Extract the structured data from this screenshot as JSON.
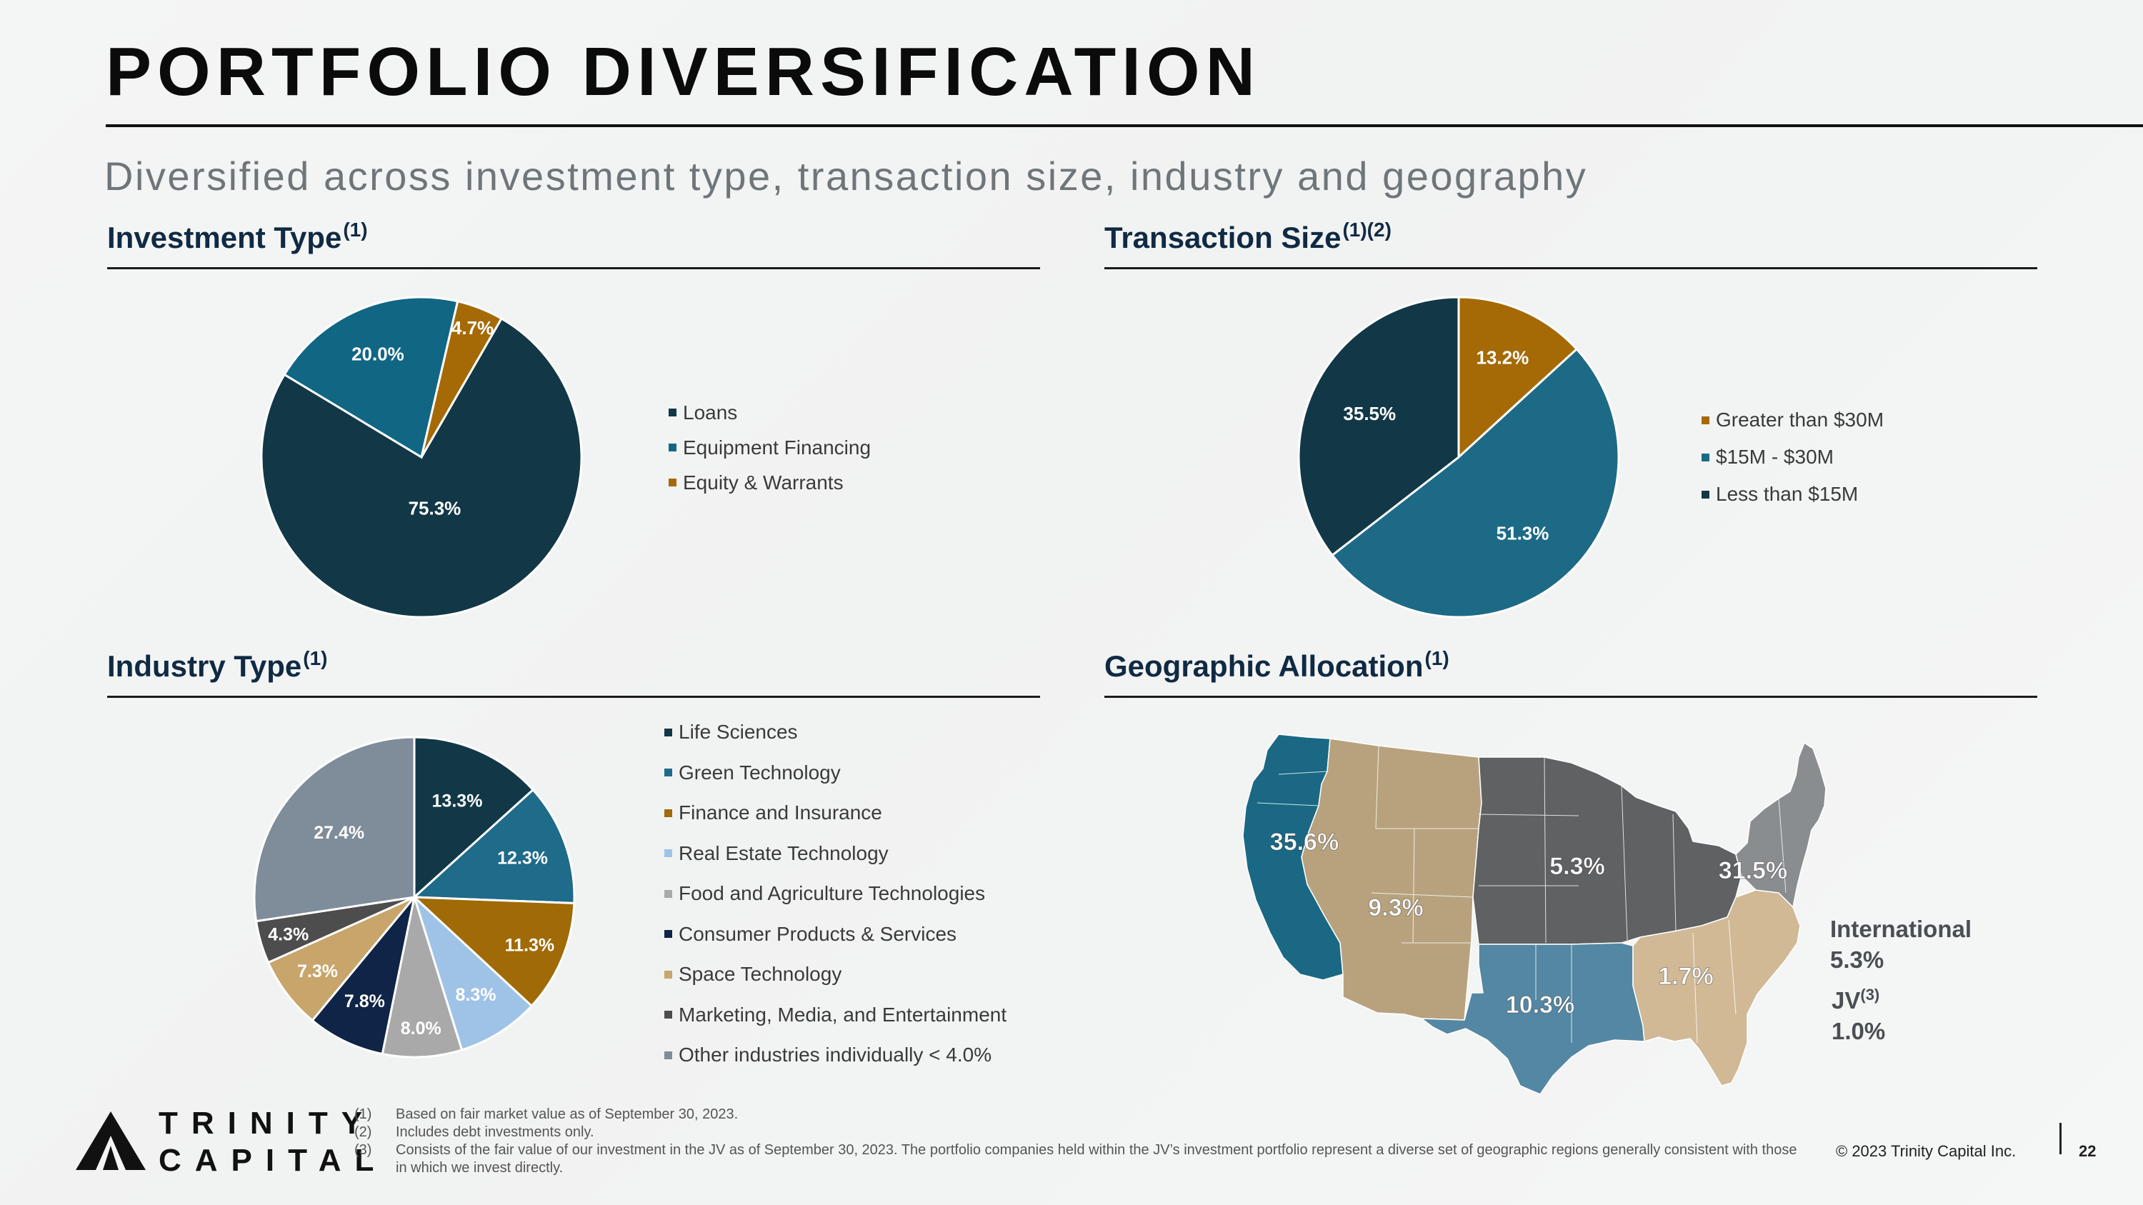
{
  "title": "PORTFOLIO DIVERSIFICATION",
  "subtitle": "Diversified across investment type, transaction size, industry and geography",
  "sections": {
    "investment_type": {
      "title": "Investment Type",
      "note": "(1)"
    },
    "transaction_size": {
      "title": "Transaction Size",
      "note": "(1)(2)"
    },
    "industry_type": {
      "title": "Industry Type",
      "note": "(1)"
    },
    "geographic": {
      "title": "Geographic Allocation",
      "note": "(1)"
    }
  },
  "chart_data": [
    {
      "id": "investment_type",
      "type": "pie",
      "start_angle": 30,
      "slices": [
        {
          "label": "Loans",
          "value": 75.3,
          "display": "75.3%",
          "color": "#123847"
        },
        {
          "label": "Equipment Financing",
          "value": 20.0,
          "display": "20.0%",
          "color": "#116684"
        },
        {
          "label": "Equity & Warrants",
          "value": 4.7,
          "display": "4.7%",
          "color": "#a56a06"
        }
      ],
      "legend_order": [
        0,
        1,
        2
      ]
    },
    {
      "id": "transaction_size",
      "type": "pie",
      "start_angle": 0,
      "slices": [
        {
          "label": "Greater than $30M",
          "value": 13.2,
          "display": "13.2%",
          "color": "#a56a06"
        },
        {
          "label": "$15M - $30M",
          "value": 51.3,
          "display": "51.3%",
          "color": "#1d6a87"
        },
        {
          "label": "Less than $15M",
          "value": 35.5,
          "display": "35.5%",
          "color": "#123847"
        }
      ],
      "legend_order": [
        0,
        1,
        2
      ]
    },
    {
      "id": "industry_type",
      "type": "pie",
      "start_angle": 0,
      "slices": [
        {
          "label": "Life Sciences",
          "value": 13.3,
          "display": "13.3%",
          "color": "#123847"
        },
        {
          "label": "Green Technology",
          "value": 12.3,
          "display": "12.3%",
          "color": "#1e6b8a"
        },
        {
          "label": "Finance and Insurance",
          "value": 11.3,
          "display": "11.3%",
          "color": "#a06a06"
        },
        {
          "label": "Real Estate Technology",
          "value": 8.3,
          "display": "8.3%",
          "color": "#9fc3e6"
        },
        {
          "label": "Food and Agriculture Technologies",
          "value": 8.0,
          "display": "8.0%",
          "color": "#a9a9a9"
        },
        {
          "label": "Consumer Products & Services",
          "value": 7.8,
          "display": "7.8%",
          "color": "#0f2446"
        },
        {
          "label": "Space Technology",
          "value": 7.3,
          "display": "7.3%",
          "color": "#c8a56a"
        },
        {
          "label": "Marketing, Media, and Entertainment",
          "value": 4.3,
          "display": "4.3%",
          "color": "#4d4d4d"
        },
        {
          "label": "Other industries individually < 4.0%",
          "value": 27.4,
          "display": "27.4%",
          "color": "#7f8c99"
        }
      ],
      "legend_order": [
        0,
        1,
        2,
        3,
        4,
        5,
        6,
        7,
        8
      ]
    }
  ],
  "map": {
    "colors": {
      "west": "#1a6884",
      "mountain": "#b8a27e",
      "central": "#5f6163",
      "south": "#5487a3",
      "southeast": "#d1b996",
      "northeast": "#8a8d90"
    },
    "labels": {
      "west": "35.6%",
      "mountain": "9.3%",
      "central": "5.3%",
      "northeast": "31.5%",
      "southeast": "1.7%",
      "south": "10.3%"
    },
    "international": {
      "label": "International",
      "value": "5.3%"
    },
    "jv": {
      "label": "JV",
      "note": "(3)",
      "value": "1.0%"
    }
  },
  "footnotes": [
    {
      "num": "(1)",
      "text": "Based on fair market value as of September 30, 2023."
    },
    {
      "num": "(2)",
      "text": "Includes debt investments only."
    },
    {
      "num": "(3)",
      "text": "Consists of the fair value of our investment in the JV as of September 30, 2023. The portfolio companies held within the JV’s investment portfolio represent a diverse set of geographic regions generally consistent with those in which we invest directly."
    }
  ],
  "logo": {
    "line1": "TRINITY",
    "line2": "CAPITAL"
  },
  "copyright": "© 2023 Trinity Capital Inc.",
  "page_number": "22"
}
